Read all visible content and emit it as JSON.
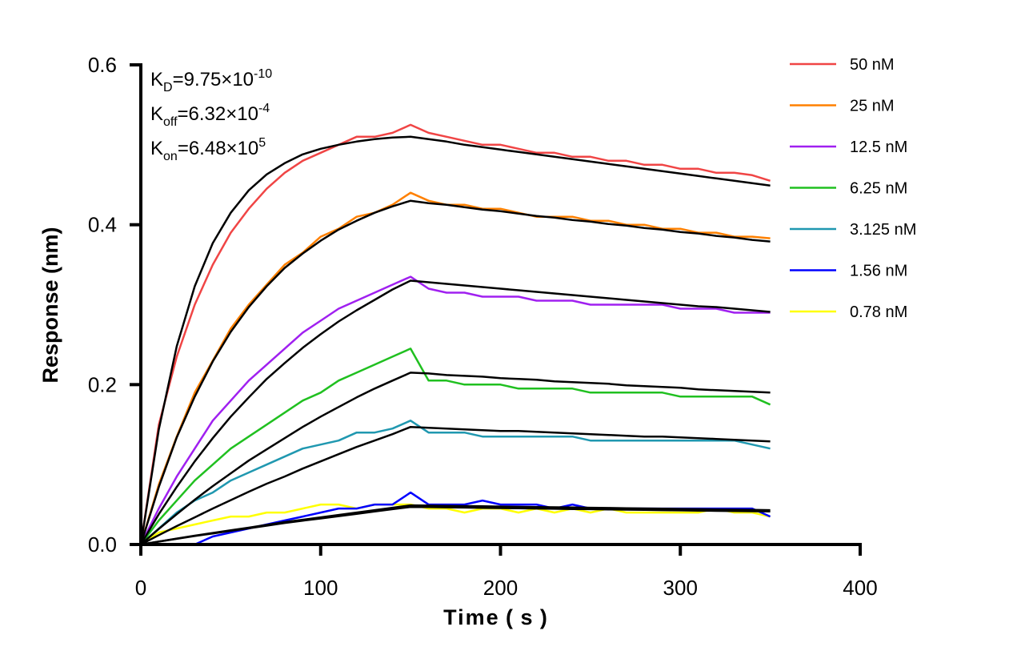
{
  "chart_data": {
    "type": "line",
    "xlabel": "Time ( s )",
    "ylabel": "Response (nm)",
    "xlim": [
      0,
      400
    ],
    "ylim": [
      0,
      0.6
    ],
    "xticks": [
      "0",
      "100",
      "200",
      "300",
      "400"
    ],
    "yticks": [
      "0.0",
      "0.2",
      "0.4",
      "0.6"
    ],
    "grid": false,
    "legend_position": "right",
    "annotations": {
      "kd": {
        "label": "K",
        "sub": "D",
        "value": "=9.75×10",
        "exp": "-10"
      },
      "koff": {
        "label": "K",
        "sub": "off",
        "value": "=6.32×10",
        "exp": "-4"
      },
      "kon": {
        "label": "K",
        "sub": "on",
        "value": "=6.48×10",
        "exp": "5"
      }
    },
    "x": [
      0,
      10,
      20,
      30,
      40,
      50,
      60,
      70,
      80,
      90,
      100,
      110,
      120,
      130,
      140,
      150,
      160,
      170,
      180,
      190,
      200,
      210,
      220,
      230,
      240,
      250,
      260,
      270,
      280,
      290,
      300,
      310,
      320,
      330,
      340,
      350
    ],
    "fit_color": "#000000",
    "series": [
      {
        "name": "50 nM",
        "color": "#f04545",
        "values": [
          0,
          0.15,
          0.235,
          0.3,
          0.35,
          0.39,
          0.42,
          0.445,
          0.465,
          0.48,
          0.49,
          0.5,
          0.51,
          0.51,
          0.515,
          0.525,
          0.515,
          0.51,
          0.505,
          0.5,
          0.5,
          0.495,
          0.49,
          0.49,
          0.485,
          0.485,
          0.48,
          0.48,
          0.475,
          0.475,
          0.47,
          0.47,
          0.465,
          0.465,
          0.462,
          0.455
        ],
        "fit": [
          0,
          0.144,
          0.248,
          0.323,
          0.377,
          0.415,
          0.443,
          0.463,
          0.477,
          0.488,
          0.495,
          0.5,
          0.504,
          0.507,
          0.509,
          0.51,
          0.507,
          0.504,
          0.5,
          0.497,
          0.494,
          0.491,
          0.488,
          0.485,
          0.482,
          0.479,
          0.476,
          0.473,
          0.47,
          0.467,
          0.464,
          0.461,
          0.458,
          0.455,
          0.452,
          0.449
        ]
      },
      {
        "name": "25 nM",
        "color": "#ff8000",
        "values": [
          0,
          0.075,
          0.135,
          0.19,
          0.23,
          0.27,
          0.3,
          0.325,
          0.35,
          0.365,
          0.385,
          0.395,
          0.41,
          0.415,
          0.425,
          0.44,
          0.43,
          0.425,
          0.425,
          0.42,
          0.42,
          0.415,
          0.41,
          0.41,
          0.41,
          0.405,
          0.405,
          0.4,
          0.4,
          0.395,
          0.395,
          0.39,
          0.39,
          0.385,
          0.385,
          0.383
        ],
        "fit": [
          0,
          0.072,
          0.134,
          0.185,
          0.229,
          0.266,
          0.297,
          0.323,
          0.346,
          0.364,
          0.38,
          0.394,
          0.405,
          0.415,
          0.423,
          0.43,
          0.427,
          0.425,
          0.422,
          0.419,
          0.417,
          0.414,
          0.411,
          0.409,
          0.406,
          0.404,
          0.401,
          0.399,
          0.396,
          0.394,
          0.391,
          0.389,
          0.386,
          0.384,
          0.381,
          0.379
        ]
      },
      {
        "name": "12.5 nM",
        "color": "#a020f0",
        "values": [
          0,
          0.045,
          0.085,
          0.12,
          0.155,
          0.18,
          0.205,
          0.225,
          0.245,
          0.265,
          0.28,
          0.295,
          0.305,
          0.315,
          0.325,
          0.335,
          0.32,
          0.315,
          0.315,
          0.31,
          0.31,
          0.31,
          0.305,
          0.305,
          0.305,
          0.3,
          0.3,
          0.3,
          0.3,
          0.3,
          0.295,
          0.295,
          0.295,
          0.29,
          0.29,
          0.29
        ],
        "fit": [
          0,
          0.038,
          0.072,
          0.104,
          0.133,
          0.16,
          0.184,
          0.207,
          0.227,
          0.246,
          0.263,
          0.279,
          0.293,
          0.306,
          0.319,
          0.33,
          0.328,
          0.326,
          0.324,
          0.322,
          0.32,
          0.318,
          0.316,
          0.314,
          0.312,
          0.31,
          0.308,
          0.306,
          0.304,
          0.302,
          0.3,
          0.298,
          0.297,
          0.295,
          0.293,
          0.291
        ]
      },
      {
        "name": "6.25 nM",
        "color": "#20c020",
        "values": [
          0,
          0.03,
          0.055,
          0.08,
          0.1,
          0.12,
          0.135,
          0.15,
          0.165,
          0.18,
          0.19,
          0.205,
          0.215,
          0.225,
          0.235,
          0.245,
          0.205,
          0.205,
          0.2,
          0.2,
          0.2,
          0.195,
          0.195,
          0.195,
          0.195,
          0.19,
          0.19,
          0.19,
          0.19,
          0.19,
          0.185,
          0.185,
          0.185,
          0.185,
          0.185,
          0.175
        ],
        "fit": [
          0,
          0.0195,
          0.038,
          0.056,
          0.073,
          0.089,
          0.105,
          0.119,
          0.133,
          0.147,
          0.16,
          0.172,
          0.184,
          0.195,
          0.205,
          0.215,
          0.214,
          0.212,
          0.211,
          0.21,
          0.208,
          0.207,
          0.206,
          0.204,
          0.203,
          0.202,
          0.201,
          0.199,
          0.198,
          0.197,
          0.196,
          0.194,
          0.193,
          0.192,
          0.191,
          0.19
        ]
      },
      {
        "name": "3.125 nM",
        "color": "#2098b0",
        "values": [
          0,
          0.02,
          0.04,
          0.055,
          0.065,
          0.08,
          0.09,
          0.1,
          0.11,
          0.12,
          0.125,
          0.13,
          0.14,
          0.14,
          0.145,
          0.155,
          0.14,
          0.14,
          0.14,
          0.135,
          0.135,
          0.135,
          0.135,
          0.135,
          0.135,
          0.13,
          0.13,
          0.13,
          0.13,
          0.13,
          0.13,
          0.13,
          0.13,
          0.13,
          0.125,
          0.12
        ],
        "fit": [
          0,
          0.0117,
          0.023,
          0.034,
          0.045,
          0.0555,
          0.066,
          0.076,
          0.085,
          0.095,
          0.104,
          0.113,
          0.122,
          0.13,
          0.138,
          0.147,
          0.146,
          0.145,
          0.144,
          0.143,
          0.142,
          0.142,
          0.141,
          0.14,
          0.139,
          0.138,
          0.137,
          0.136,
          0.135,
          0.135,
          0.134,
          0.133,
          0.132,
          0.131,
          0.13,
          0.129
        ]
      },
      {
        "name": "1.56 nM",
        "color": "#0000ff",
        "values": [
          0,
          0,
          0,
          0,
          0.01,
          0.015,
          0.02,
          0.025,
          0.03,
          0.035,
          0.04,
          0.045,
          0.045,
          0.05,
          0.05,
          0.065,
          0.05,
          0.05,
          0.05,
          0.055,
          0.05,
          0.05,
          0.05,
          0.045,
          0.05,
          0.045,
          0.045,
          0.045,
          0.045,
          0.045,
          0.045,
          0.045,
          0.045,
          0.045,
          0.045,
          0.035
        ],
        "fit": [
          0,
          0.0037,
          0.0074,
          0.011,
          0.0144,
          0.0178,
          0.021,
          0.0245,
          0.028,
          0.031,
          0.034,
          0.037,
          0.04,
          0.043,
          0.046,
          0.049,
          0.0487,
          0.0484,
          0.0481,
          0.0478,
          0.0475,
          0.0472,
          0.0469,
          0.0466,
          0.0463,
          0.046,
          0.0457,
          0.0454,
          0.0451,
          0.0448,
          0.0445,
          0.0442,
          0.0439,
          0.0436,
          0.0433,
          0.043
        ]
      },
      {
        "name": "0.78 nM",
        "color": "#ffff00",
        "values": [
          0,
          0.015,
          0.02,
          0.025,
          0.03,
          0.035,
          0.035,
          0.04,
          0.04,
          0.045,
          0.05,
          0.05,
          0.045,
          0.05,
          0.05,
          0.05,
          0.045,
          0.045,
          0.04,
          0.045,
          0.045,
          0.04,
          0.045,
          0.04,
          0.045,
          0.04,
          0.045,
          0.04,
          0.04,
          0.04,
          0.04,
          0.04,
          0.045,
          0.04,
          0.04,
          0.035
        ],
        "fit": [
          0,
          0.0036,
          0.0071,
          0.0106,
          0.0138,
          0.0171,
          0.0202,
          0.0235,
          0.0269,
          0.0298,
          0.0326,
          0.0355,
          0.0384,
          0.0413,
          0.0442,
          0.047,
          0.0468,
          0.0465,
          0.0462,
          0.0459,
          0.0456,
          0.0453,
          0.045,
          0.0447,
          0.0444,
          0.0442,
          0.0439,
          0.0436,
          0.0433,
          0.043,
          0.0427,
          0.0424,
          0.0421,
          0.0419,
          0.0416,
          0.0413
        ]
      }
    ]
  }
}
